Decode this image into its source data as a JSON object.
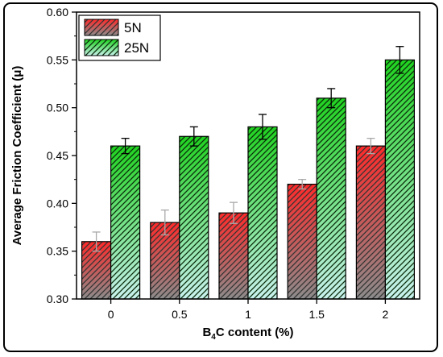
{
  "chart_data": {
    "type": "bar",
    "categories": [
      "0",
      "0.5",
      "1",
      "1.5",
      "2"
    ],
    "series": [
      {
        "name": "5N",
        "values": [
          0.36,
          0.38,
          0.39,
          0.42,
          0.46
        ],
        "errors": [
          0.01,
          0.013,
          0.011,
          0.005,
          0.008
        ],
        "color_top": "#ff2a2a",
        "color_bottom": "#8c8c8c",
        "hatch": "#333333"
      },
      {
        "name": "25N",
        "values": [
          0.46,
          0.47,
          0.48,
          0.51,
          0.55
        ],
        "errors": [
          0.008,
          0.01,
          0.013,
          0.01,
          0.014
        ],
        "color_top": "#1fd21f",
        "color_bottom": "#c9f1ee",
        "hatch": "#0a2a0a"
      }
    ],
    "xlabel_main": "B",
    "xlabel_sub": "4",
    "xlabel_rest": "C content (%)",
    "ylabel": "Average Friction Coefficient (μ)",
    "ylim": [
      0.3,
      0.6
    ],
    "yticks": [
      "0.30",
      "0.35",
      "0.40",
      "0.45",
      "0.50",
      "0.55",
      "0.60"
    ],
    "legend_position": "top-left",
    "grid": false
  }
}
